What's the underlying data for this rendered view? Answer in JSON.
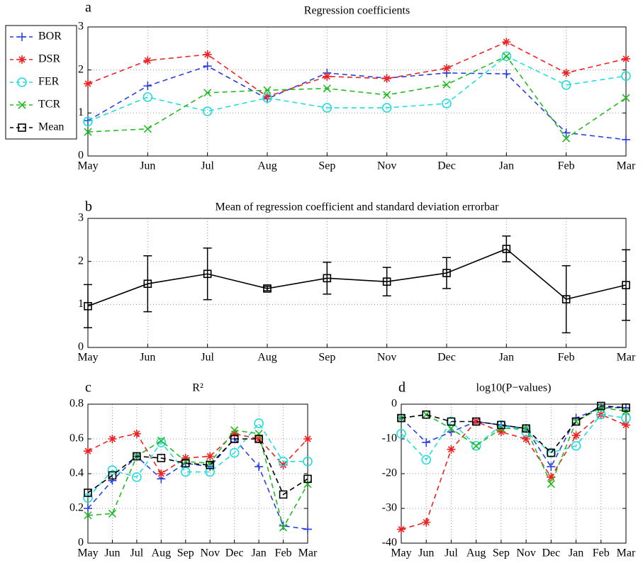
{
  "chart_data": [
    {
      "type": "line",
      "panel_label": "a",
      "title": "Regression coefficients",
      "linestyle": "dashed",
      "grid": true,
      "legend": "outside-left",
      "categories": [
        "May",
        "Jun",
        "Jul",
        "Aug",
        "Sep",
        "Nov",
        "Dec",
        "Jan",
        "Feb",
        "Mar"
      ],
      "ylim": [
        0,
        3
      ],
      "yticks": [
        0,
        1,
        2,
        3
      ],
      "series": [
        {
          "name": "BOR",
          "color": "#2a3fe0",
          "marker": "plus",
          "values": [
            0.82,
            1.63,
            2.09,
            1.33,
            1.93,
            1.81,
            1.93,
            1.91,
            0.54,
            0.38
          ]
        },
        {
          "name": "DSR",
          "color": "#ee2222",
          "marker": "star",
          "values": [
            1.68,
            2.22,
            2.36,
            1.38,
            1.85,
            1.8,
            2.04,
            2.65,
            1.93,
            2.26
          ]
        },
        {
          "name": "FER",
          "color": "#22dddd",
          "marker": "circle",
          "values": [
            0.8,
            1.37,
            1.04,
            1.35,
            1.12,
            1.12,
            1.22,
            2.32,
            1.65,
            1.86
          ]
        },
        {
          "name": "TCR",
          "color": "#22bb22",
          "marker": "x",
          "values": [
            0.56,
            0.63,
            1.47,
            1.53,
            1.57,
            1.42,
            1.66,
            2.32,
            0.41,
            1.35
          ]
        },
        {
          "name": "Mean",
          "color": "#000000",
          "marker": "square",
          "values": [
            null,
            null,
            null,
            null,
            null,
            null,
            null,
            null,
            null,
            null
          ]
        }
      ]
    },
    {
      "type": "errorbar",
      "panel_label": "b",
      "title": "Mean of regression coefficient and standard deviation errorbar",
      "linestyle": "solid",
      "grid": true,
      "categories": [
        "May",
        "Jun",
        "Jul",
        "Aug",
        "Sep",
        "Nov",
        "Dec",
        "Jan",
        "Feb",
        "Mar"
      ],
      "ylim": [
        0,
        3
      ],
      "yticks": [
        0,
        1,
        2,
        3
      ],
      "series": [
        {
          "name": "Mean",
          "color": "#000000",
          "marker": "square",
          "values": [
            0.96,
            1.48,
            1.71,
            1.37,
            1.61,
            1.53,
            1.73,
            2.29,
            1.12,
            1.45
          ],
          "errors": [
            0.5,
            0.65,
            0.6,
            0.05,
            0.37,
            0.33,
            0.36,
            0.3,
            0.78,
            0.82
          ]
        }
      ]
    },
    {
      "type": "line",
      "panel_label": "c",
      "title": "R²",
      "linestyle": "dashed",
      "grid": true,
      "categories": [
        "May",
        "Jun",
        "Jul",
        "Aug",
        "Sep",
        "Nov",
        "Dec",
        "Jan",
        "Feb",
        "Mar"
      ],
      "ylim": [
        0,
        0.8
      ],
      "yticks": [
        0,
        0.2,
        0.4,
        0.6,
        0.8
      ],
      "series": [
        {
          "name": "BOR",
          "color": "#2a3fe0",
          "marker": "plus",
          "values": [
            0.2,
            0.36,
            0.5,
            0.37,
            0.46,
            0.44,
            0.6,
            0.44,
            0.1,
            0.08
          ]
        },
        {
          "name": "DSR",
          "color": "#ee2222",
          "marker": "star",
          "values": [
            0.53,
            0.6,
            0.63,
            0.4,
            0.49,
            0.5,
            0.63,
            0.6,
            0.45,
            0.6
          ]
        },
        {
          "name": "FER",
          "color": "#22dddd",
          "marker": "circle",
          "values": [
            0.26,
            0.42,
            0.38,
            0.58,
            0.41,
            0.41,
            0.52,
            0.69,
            0.47,
            0.47
          ]
        },
        {
          "name": "TCR",
          "color": "#22bb22",
          "marker": "x",
          "values": [
            0.16,
            0.17,
            0.5,
            0.59,
            0.47,
            0.46,
            0.65,
            0.63,
            0.09,
            0.34
          ]
        },
        {
          "name": "Mean",
          "color": "#000000",
          "marker": "square",
          "values": [
            0.29,
            0.39,
            0.5,
            0.49,
            0.46,
            0.45,
            0.6,
            0.6,
            0.28,
            0.37
          ]
        }
      ]
    },
    {
      "type": "line",
      "panel_label": "d",
      "title": "log10(P−values)",
      "linestyle": "dashed",
      "grid": true,
      "categories": [
        "May",
        "Jun",
        "Jul",
        "Aug",
        "Sep",
        "Nov",
        "Dec",
        "Jan",
        "Feb",
        "Mar"
      ],
      "ylim": [
        -40,
        0
      ],
      "yticks": [
        -40,
        -30,
        -20,
        -10,
        0
      ],
      "series": [
        {
          "name": "BOR",
          "color": "#2a3fe0",
          "marker": "plus",
          "values": [
            -4,
            -11,
            -8,
            -5,
            -6,
            -7,
            -18,
            -4,
            -1,
            -1
          ]
        },
        {
          "name": "DSR",
          "color": "#ee2222",
          "marker": "star",
          "values": [
            -36,
            -34,
            -13,
            -5,
            -8,
            -10,
            -21,
            -9,
            -3,
            -6
          ]
        },
        {
          "name": "FER",
          "color": "#22dddd",
          "marker": "circle",
          "values": [
            -8.5,
            -16,
            -5,
            -12,
            -6,
            -8,
            -14,
            -12,
            -3,
            -4
          ]
        },
        {
          "name": "TCR",
          "color": "#22bb22",
          "marker": "x",
          "values": [
            -4,
            -3,
            -7,
            -12,
            -7,
            -7,
            -23,
            -5,
            -1,
            -2
          ]
        },
        {
          "name": "Mean",
          "color": "#000000",
          "marker": "square",
          "values": [
            -4,
            -3,
            -5,
            -5,
            -6,
            -7,
            -14,
            -5,
            -0.5,
            -1
          ]
        }
      ]
    }
  ]
}
